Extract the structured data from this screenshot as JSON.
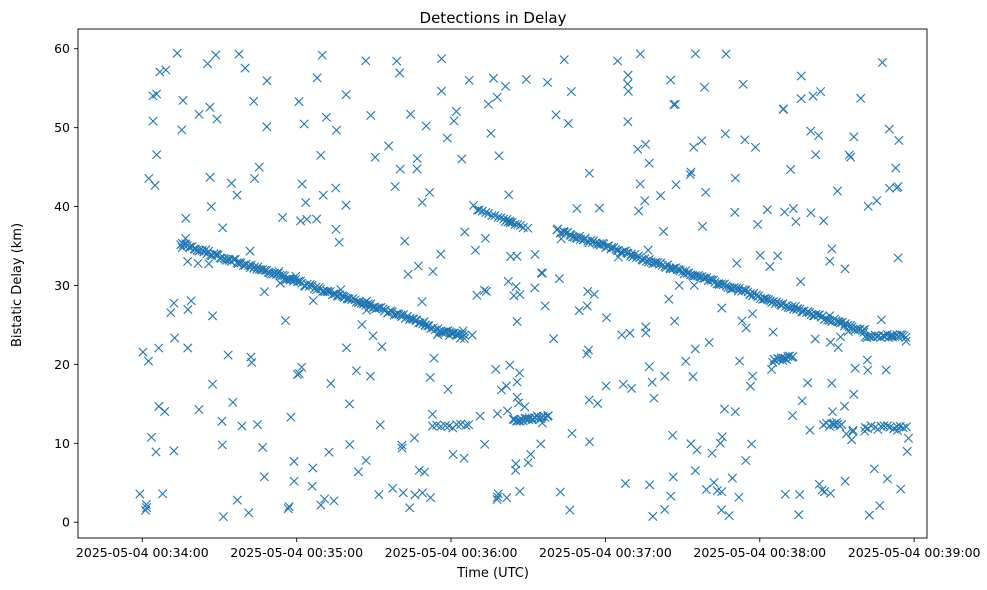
{
  "chart_data": {
    "type": "scatter",
    "title": "Detections in Delay",
    "xlabel": "Time (UTC)",
    "ylabel": "Bistatic Delay (km)",
    "x_unit": "seconds since 2025-05-04 00:33:45",
    "xlim": [
      -10,
      320
    ],
    "ylim": [
      -2,
      62.5
    ],
    "x_ticks": [
      {
        "value": 15,
        "label": "2025-05-04 00:34:00"
      },
      {
        "value": 75,
        "label": "2025-05-04 00:35:00"
      },
      {
        "value": 135,
        "label": "2025-05-04 00:36:00"
      },
      {
        "value": 195,
        "label": "2025-05-04 00:37:00"
      },
      {
        "value": 255,
        "label": "2025-05-04 00:38:00"
      },
      {
        "value": 315,
        "label": "2025-05-04 00:39:00"
      }
    ],
    "y_ticks": [
      {
        "value": 0,
        "label": "0"
      },
      {
        "value": 10,
        "label": "10"
      },
      {
        "value": 20,
        "label": "20"
      },
      {
        "value": 30,
        "label": "30"
      },
      {
        "value": 40,
        "label": "40"
      },
      {
        "value": 50,
        "label": "50"
      },
      {
        "value": 60,
        "label": "60"
      }
    ],
    "marker": "x",
    "color": "#1f77b4",
    "series": [
      {
        "name": "detections",
        "tracks": [
          {
            "x_start": 30,
            "x_end": 125,
            "y_start": 35.3,
            "y_end": 25.2,
            "count": 150
          },
          {
            "x_start": 125,
            "x_end": 140,
            "y_start": 24.8,
            "y_end": 23.6,
            "count": 20
          },
          {
            "x_start": 176,
            "x_end": 296,
            "y_start": 37.0,
            "y_end": 24.2,
            "count": 190
          },
          {
            "x_start": 296,
            "x_end": 312,
            "y_start": 23.6,
            "y_end": 23.6,
            "count": 22
          },
          {
            "x_start": 159,
            "x_end": 173,
            "y_start": 12.9,
            "y_end": 13.4,
            "count": 22
          },
          {
            "x_start": 260,
            "x_end": 268,
            "y_start": 20.5,
            "y_end": 21.0,
            "count": 14
          },
          {
            "x_start": 128,
            "x_end": 142,
            "y_start": 12.2,
            "y_end": 12.2,
            "count": 10
          },
          {
            "x_start": 280,
            "x_end": 287,
            "y_start": 12.4,
            "y_end": 12.4,
            "count": 8
          },
          {
            "x_start": 296,
            "x_end": 312,
            "y_start": 12.0,
            "y_end": 12.0,
            "count": 14
          },
          {
            "x_start": 145,
            "x_end": 158,
            "y_start": 39.5,
            "y_end": 38.2,
            "count": 12
          },
          {
            "x_start": 156,
            "x_end": 163,
            "y_start": 38.0,
            "y_end": 37.5,
            "count": 8
          },
          {
            "x_start": 130,
            "x_end": 140,
            "y_start": 24.0,
            "y_end": 23.5,
            "count": 8
          }
        ],
        "scattered_points": {
          "x_range": [
            14,
            313
          ],
          "y_range": [
            0.5,
            59.6
          ],
          "count": 420
        }
      }
    ]
  }
}
